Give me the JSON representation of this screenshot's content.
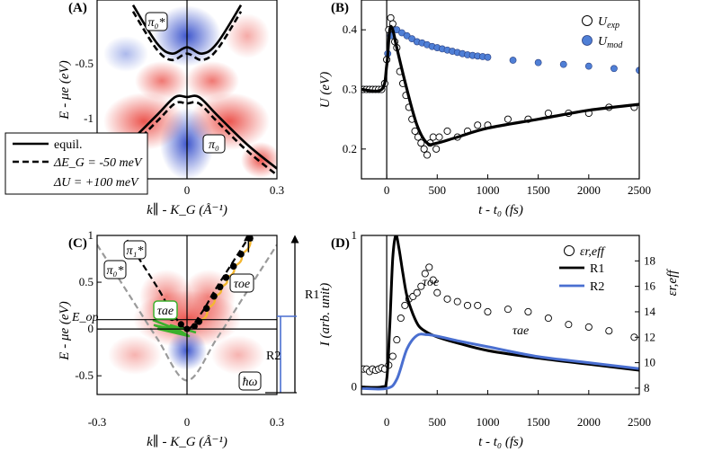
{
  "colors": {
    "red": "#e8372f",
    "blue": "#2a45c8",
    "model_blue": "#4f7fd6",
    "r2_blue": "#4a6fd0",
    "orange": "#f4b731",
    "green": "#3bb02c",
    "gray": "#9a9a9a"
  },
  "panels": {
    "A": {
      "letter": "(A)",
      "xlabel": "k∥ - K_G (Å⁻¹)",
      "ylabel": "E - μe (eV)",
      "xticks": [
        "0",
        "0.3"
      ],
      "yticks": [
        "-0.5",
        "-1"
      ],
      "label_pi0star": "π₀*",
      "label_pi0": "π₀",
      "legend": [
        "equil.",
        "ΔE_G = -50 meV",
        "ΔU = +100 meV"
      ]
    },
    "B": {
      "letter": "(B)",
      "xlabel": "t - t₀ (fs)",
      "ylabel": "U (eV)",
      "xticks": [
        "0",
        "500",
        "1000",
        "1500",
        "2000",
        "2500"
      ],
      "yticks": [
        "0.4",
        "0.3",
        "0.2"
      ],
      "legend_exp": "U",
      "legend_exp_sub": "exp",
      "legend_mod": "U",
      "legend_mod_sub": "mod"
    },
    "C": {
      "letter": "(C)",
      "xlabel": "k∥ - K_G (Å⁻¹)",
      "ylabel": "E - μe (eV)",
      "xticks": [
        "-0.3",
        "0",
        "0.3"
      ],
      "yticks": [
        "1",
        "0.5",
        "0",
        "-0.5"
      ],
      "label_pi1star": "π₁*",
      "label_pi0star": "π₀*",
      "label_Eop": "E_op",
      "label_tau_oe": "τoe",
      "label_tau_ae": "τae",
      "label_R1": "R1",
      "label_R2": "R2",
      "label_hw": "ħω"
    },
    "D": {
      "letter": "(D)",
      "xlabel": "t - t₀ (fs)",
      "ylabel_left": "I (arb. unit)",
      "ylabel_right": "εr,eff",
      "xticks": [
        "0",
        "500",
        "1000",
        "1500",
        "2000",
        "2500"
      ],
      "yticks_left": [
        "1",
        "0"
      ],
      "yticks_right": [
        "18",
        "16",
        "14",
        "12",
        "10",
        "8"
      ],
      "label_tau_oe": "τoe",
      "label_tau_ae": "τae",
      "legend": [
        "εr,eff",
        "R1",
        "R2"
      ]
    }
  },
  "chart_data": [
    {
      "panel": "A",
      "type": "line",
      "xlim": [
        -0.3,
        0.3
      ],
      "ylim": [
        -1.3,
        0.1
      ],
      "series": [
        {
          "name": "equil.",
          "style": "solid",
          "x": [
            -0.18,
            -0.1,
            -0.05,
            0,
            0.05,
            0.1,
            0.18
          ],
          "y": [
            0.06,
            -0.24,
            -0.32,
            -0.27,
            -0.32,
            -0.24,
            0.06
          ]
        },
        {
          "name": "equil.",
          "style": "solid",
          "x": [
            -0.3,
            -0.2,
            -0.1,
            -0.04,
            0,
            0.04,
            0.1,
            0.2,
            0.3
          ],
          "y": [
            -1.22,
            -1.03,
            -0.8,
            -0.66,
            -0.66,
            -0.66,
            -0.8,
            -1.03,
            -1.22
          ]
        },
        {
          "name": "ΔE_G = -50 meV",
          "style": "dashed",
          "x": [
            -0.18,
            -0.1,
            -0.05,
            0,
            0.05,
            0.1,
            0.18
          ],
          "y": [
            0.01,
            -0.29,
            -0.37,
            -0.32,
            -0.37,
            -0.29,
            0.01
          ]
        },
        {
          "name": "ΔE_G = -50 meV",
          "style": "dashed",
          "x": [
            -0.3,
            -0.2,
            -0.1,
            -0.04,
            0,
            0.04,
            0.1,
            0.2,
            0.3
          ],
          "y": [
            -1.27,
            -1.08,
            -0.85,
            -0.71,
            -0.71,
            -0.71,
            -0.85,
            -1.08,
            -1.27
          ]
        }
      ]
    },
    {
      "panel": "B",
      "type": "scatter",
      "xlim": [
        -250,
        2500
      ],
      "ylim": [
        0.15,
        0.45
      ],
      "series": [
        {
          "name": "U_exp",
          "marker": "open-circle",
          "x": [
            -230,
            -200,
            -170,
            -140,
            -110,
            -80,
            -50,
            -20,
            0,
            20,
            40,
            60,
            80,
            100,
            130,
            160,
            190,
            220,
            250,
            280,
            310,
            340,
            370,
            400,
            430,
            460,
            490,
            520,
            600,
            700,
            800,
            900,
            1000,
            1200,
            1400,
            1600,
            1800,
            2000,
            2200,
            2450
          ],
          "y": [
            0.3,
            0.3,
            0.3,
            0.3,
            0.3,
            0.3,
            0.3,
            0.31,
            0.35,
            0.4,
            0.42,
            0.41,
            0.38,
            0.37,
            0.33,
            0.31,
            0.29,
            0.27,
            0.25,
            0.23,
            0.22,
            0.21,
            0.2,
            0.19,
            0.21,
            0.22,
            0.2,
            0.22,
            0.23,
            0.22,
            0.23,
            0.24,
            0.24,
            0.25,
            0.25,
            0.26,
            0.26,
            0.26,
            0.27,
            0.27
          ]
        },
        {
          "name": "U_mod",
          "marker": "filled-circle",
          "x": [
            -230,
            -200,
            -170,
            -140,
            -110,
            -80,
            -50,
            -20,
            10,
            40,
            70,
            100,
            150,
            200,
            250,
            300,
            350,
            400,
            450,
            500,
            550,
            600,
            650,
            700,
            750,
            800,
            850,
            900,
            950,
            1000,
            1250,
            1500,
            1750,
            2000,
            2250,
            2500
          ],
          "y": [
            0.3,
            0.3,
            0.3,
            0.3,
            0.3,
            0.3,
            0.3,
            0.31,
            0.36,
            0.39,
            0.4,
            0.4,
            0.395,
            0.39,
            0.385,
            0.38,
            0.378,
            0.375,
            0.372,
            0.37,
            0.368,
            0.366,
            0.364,
            0.362,
            0.36,
            0.358,
            0.357,
            0.356,
            0.355,
            0.354,
            0.349,
            0.345,
            0.342,
            0.339,
            0.335,
            0.332
          ]
        },
        {
          "name": "fit",
          "style": "solid",
          "x": [
            -250,
            -50,
            0,
            30,
            60,
            100,
            200,
            300,
            400,
            500,
            700,
            1000,
            1500,
            2000,
            2500
          ],
          "y": [
            0.3,
            0.3,
            0.34,
            0.4,
            0.4,
            0.37,
            0.3,
            0.24,
            0.21,
            0.21,
            0.22,
            0.235,
            0.25,
            0.265,
            0.275
          ]
        }
      ]
    },
    {
      "panel": "C",
      "type": "line",
      "xlim": [
        -0.3,
        0.3
      ],
      "ylim": [
        -0.7,
        1.0
      ],
      "series": [
        {
          "name": "π₁*",
          "style": "dashed-black",
          "x": [
            -0.2,
            -0.1,
            -0.05,
            0,
            0.05,
            0.1,
            0.2
          ],
          "y": [
            0.95,
            0.45,
            0.18,
            0.0,
            0.18,
            0.45,
            0.95
          ]
        },
        {
          "name": "π₀*",
          "style": "dashed-gray",
          "x": [
            -0.3,
            -0.2,
            -0.1,
            0,
            0.1,
            0.2,
            0.3
          ],
          "y": [
            0.9,
            0.4,
            -0.1,
            -0.55,
            -0.1,
            0.4,
            0.9
          ]
        },
        {
          "name": "cascade",
          "style": "points",
          "x": [
            0.04,
            0.065,
            0.09,
            0.11,
            0.13,
            0.155,
            0.18,
            0.21
          ],
          "y": [
            0.08,
            0.22,
            0.35,
            0.45,
            0.55,
            0.67,
            0.8,
            0.97
          ]
        }
      ],
      "levels": {
        "E_op": 0.1,
        "zero": 0.0,
        "hw_bottom": -0.6,
        "top": 1.0
      }
    },
    {
      "panel": "D",
      "type": "line",
      "xlim": [
        -250,
        2500
      ],
      "ylim_left": [
        -0.05,
        1.0
      ],
      "ylim_right": [
        7.5,
        20
      ],
      "series": [
        {
          "name": "R1",
          "axis": "left",
          "x": [
            -250,
            -50,
            0,
            30,
            60,
            90,
            120,
            160,
            200,
            260,
            320,
            400,
            500,
            700,
            1000,
            1500,
            2000,
            2500
          ],
          "y": [
            0,
            0,
            0.05,
            0.4,
            0.85,
            1.0,
            0.92,
            0.75,
            0.6,
            0.48,
            0.4,
            0.36,
            0.33,
            0.29,
            0.24,
            0.19,
            0.15,
            0.11
          ]
        },
        {
          "name": "R2",
          "axis": "left",
          "x": [
            -250,
            0,
            100,
            200,
            300,
            400,
            500,
            700,
            1000,
            1500,
            2000,
            2500
          ],
          "y": [
            -0.01,
            -0.01,
            0.05,
            0.25,
            0.34,
            0.345,
            0.335,
            0.305,
            0.265,
            0.2,
            0.16,
            0.12
          ]
        },
        {
          "name": "εr,eff",
          "axis": "right",
          "marker": "open-circle",
          "x": [
            -230,
            -200,
            -170,
            -140,
            -110,
            -80,
            -50,
            -20,
            20,
            60,
            100,
            140,
            180,
            220,
            260,
            300,
            340,
            380,
            420,
            460,
            500,
            600,
            700,
            800,
            900,
            1000,
            1200,
            1400,
            1600,
            1800,
            2000,
            2200,
            2450
          ],
          "y": [
            9.5,
            9.5,
            9.3,
            9.5,
            9.4,
            9.5,
            9.6,
            9.5,
            9.8,
            10.5,
            11.8,
            13.5,
            14.5,
            15,
            15.2,
            15.5,
            16,
            17,
            17.5,
            16.5,
            15.5,
            15,
            14.8,
            14.5,
            14.5,
            14,
            14.2,
            14,
            13.5,
            13,
            12.8,
            12.5,
            12
          ]
        }
      ]
    }
  ]
}
